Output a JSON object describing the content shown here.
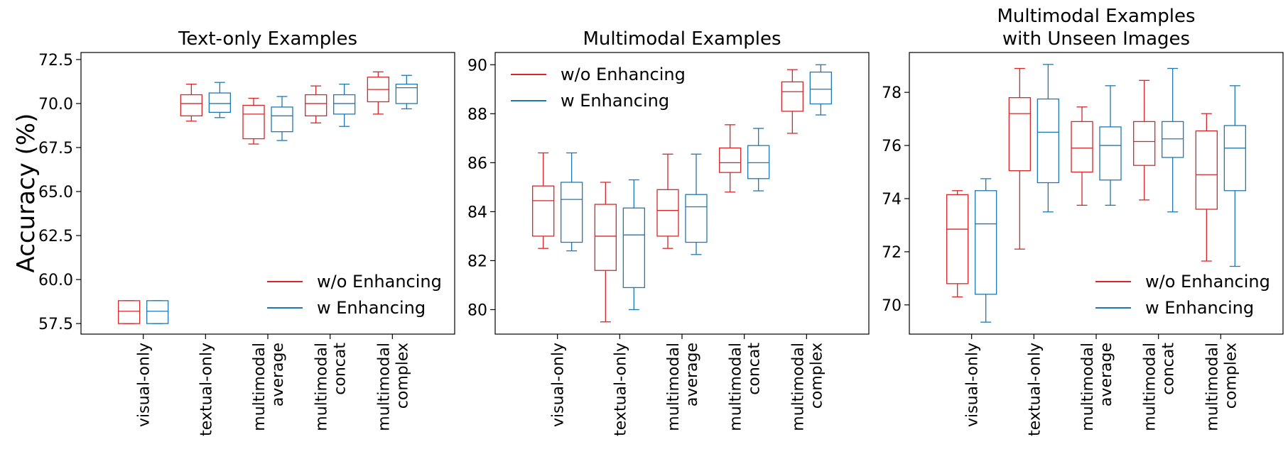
{
  "figure": {
    "ylabel": "Accuracy (%)",
    "colors": {
      "w/o Enhancing": "#d62728",
      "w Enhancing": "#1f77b4"
    }
  },
  "chart_data": [
    {
      "type": "box",
      "title": "Text-only Examples",
      "categories": [
        [
          "visual-only"
        ],
        [
          "textual-only"
        ],
        [
          "multimodal",
          "average"
        ],
        [
          "multimodal",
          "concat"
        ],
        [
          "multimodal",
          "complex"
        ]
      ],
      "ylim": [
        56.9,
        72.9
      ],
      "yticks": [
        57.5,
        60.0,
        62.5,
        65.0,
        67.5,
        70.0,
        72.5
      ],
      "ytick_labels": [
        "57.5",
        "60.0",
        "62.5",
        "65.0",
        "67.5",
        "70.0",
        "72.5"
      ],
      "legend": {
        "position": "lower-right",
        "entries": [
          "w/o Enhancing",
          "w Enhancing"
        ]
      },
      "series": [
        {
          "name": "w/o Enhancing",
          "boxes": [
            {
              "whislo": 57.5,
              "q1": 57.5,
              "med": 58.2,
              "q3": 58.8,
              "whishi": 58.8
            },
            {
              "whislo": 69.0,
              "q1": 69.3,
              "med": 70.0,
              "q3": 70.5,
              "whishi": 71.1
            },
            {
              "whislo": 67.7,
              "q1": 68.0,
              "med": 69.4,
              "q3": 69.9,
              "whishi": 70.3
            },
            {
              "whislo": 68.9,
              "q1": 69.3,
              "med": 70.0,
              "q3": 70.5,
              "whishi": 71.0
            },
            {
              "whislo": 69.4,
              "q1": 70.1,
              "med": 70.8,
              "q3": 71.5,
              "whishi": 71.8
            }
          ]
        },
        {
          "name": "w Enhancing",
          "boxes": [
            {
              "whislo": 57.5,
              "q1": 57.5,
              "med": 58.2,
              "q3": 58.8,
              "whishi": 58.8
            },
            {
              "whislo": 69.2,
              "q1": 69.5,
              "med": 70.0,
              "q3": 70.6,
              "whishi": 71.2
            },
            {
              "whislo": 67.9,
              "q1": 68.4,
              "med": 69.3,
              "q3": 69.8,
              "whishi": 70.4
            },
            {
              "whislo": 68.7,
              "q1": 69.4,
              "med": 70.0,
              "q3": 70.5,
              "whishi": 71.1
            },
            {
              "whislo": 69.7,
              "q1": 70.0,
              "med": 70.9,
              "q3": 71.1,
              "whishi": 71.6
            }
          ]
        }
      ]
    },
    {
      "type": "box",
      "title": "Multimodal Examples",
      "categories": [
        [
          "visual-only"
        ],
        [
          "textual-only"
        ],
        [
          "multimodal",
          "average"
        ],
        [
          "multimodal",
          "concat"
        ],
        [
          "multimodal",
          "complex"
        ]
      ],
      "ylim": [
        79.0,
        90.5
      ],
      "yticks": [
        80,
        82,
        84,
        86,
        88,
        90
      ],
      "ytick_labels": [
        "80",
        "82",
        "84",
        "86",
        "88",
        "90"
      ],
      "legend": {
        "position": "upper-left",
        "entries": [
          "w/o Enhancing",
          "w Enhancing"
        ]
      },
      "series": [
        {
          "name": "w/o Enhancing",
          "boxes": [
            {
              "whislo": 82.5,
              "q1": 83.0,
              "med": 84.45,
              "q3": 85.05,
              "whishi": 86.4
            },
            {
              "whislo": 79.5,
              "q1": 81.6,
              "med": 83.0,
              "q3": 84.3,
              "whishi": 85.2
            },
            {
              "whislo": 82.5,
              "q1": 83.0,
              "med": 84.05,
              "q3": 84.9,
              "whishi": 86.35
            },
            {
              "whislo": 84.8,
              "q1": 85.6,
              "med": 86.0,
              "q3": 86.6,
              "whishi": 87.55
            },
            {
              "whislo": 87.2,
              "q1": 88.1,
              "med": 88.9,
              "q3": 89.3,
              "whishi": 89.8
            }
          ]
        },
        {
          "name": "w Enhancing",
          "boxes": [
            {
              "whislo": 82.4,
              "q1": 82.75,
              "med": 84.5,
              "q3": 85.2,
              "whishi": 86.4
            },
            {
              "whislo": 80.0,
              "q1": 80.9,
              "med": 83.05,
              "q3": 84.15,
              "whishi": 85.3
            },
            {
              "whislo": 82.25,
              "q1": 82.75,
              "med": 84.2,
              "q3": 84.7,
              "whishi": 86.35
            },
            {
              "whislo": 84.85,
              "q1": 85.35,
              "med": 86.0,
              "q3": 86.7,
              "whishi": 87.4
            },
            {
              "whislo": 87.95,
              "q1": 88.4,
              "med": 89.0,
              "q3": 89.7,
              "whishi": 90.0
            }
          ]
        }
      ]
    },
    {
      "type": "box",
      "title": "Multimodal Examples\nwith Unseen Images",
      "title_lines": [
        "Multimodal Examples",
        "with Unseen Images"
      ],
      "categories": [
        [
          "visual-only"
        ],
        [
          "textual-only"
        ],
        [
          "multimodal",
          "average"
        ],
        [
          "multimodal",
          "concat"
        ],
        [
          "multimodal",
          "complex"
        ]
      ],
      "ylim": [
        68.9,
        79.5
      ],
      "yticks": [
        70,
        72,
        74,
        76,
        78
      ],
      "ytick_labels": [
        "70",
        "72",
        "74",
        "76",
        "78"
      ],
      "legend": {
        "position": "lower-right",
        "entries": [
          "w/o Enhancing",
          "w Enhancing"
        ]
      },
      "series": [
        {
          "name": "w/o Enhancing",
          "boxes": [
            {
              "whislo": 70.3,
              "q1": 70.8,
              "med": 72.85,
              "q3": 74.15,
              "whishi": 74.3
            },
            {
              "whislo": 72.1,
              "q1": 75.05,
              "med": 77.2,
              "q3": 77.8,
              "whishi": 78.9
            },
            {
              "whislo": 73.75,
              "q1": 75.0,
              "med": 75.9,
              "q3": 76.9,
              "whishi": 77.45
            },
            {
              "whislo": 73.95,
              "q1": 75.25,
              "med": 76.15,
              "q3": 76.9,
              "whishi": 78.45
            },
            {
              "whislo": 71.65,
              "q1": 73.6,
              "med": 74.9,
              "q3": 76.55,
              "whishi": 77.2
            }
          ]
        },
        {
          "name": "w Enhancing",
          "boxes": [
            {
              "whislo": 69.35,
              "q1": 70.4,
              "med": 73.05,
              "q3": 74.3,
              "whishi": 74.75
            },
            {
              "whislo": 73.5,
              "q1": 74.6,
              "med": 76.5,
              "q3": 77.75,
              "whishi": 79.05
            },
            {
              "whislo": 73.75,
              "q1": 74.7,
              "med": 76.0,
              "q3": 76.7,
              "whishi": 78.25
            },
            {
              "whislo": 73.5,
              "q1": 75.55,
              "med": 76.25,
              "q3": 76.9,
              "whishi": 78.9
            },
            {
              "whislo": 71.45,
              "q1": 74.3,
              "med": 75.9,
              "q3": 76.75,
              "whishi": 78.25
            }
          ]
        }
      ]
    }
  ]
}
